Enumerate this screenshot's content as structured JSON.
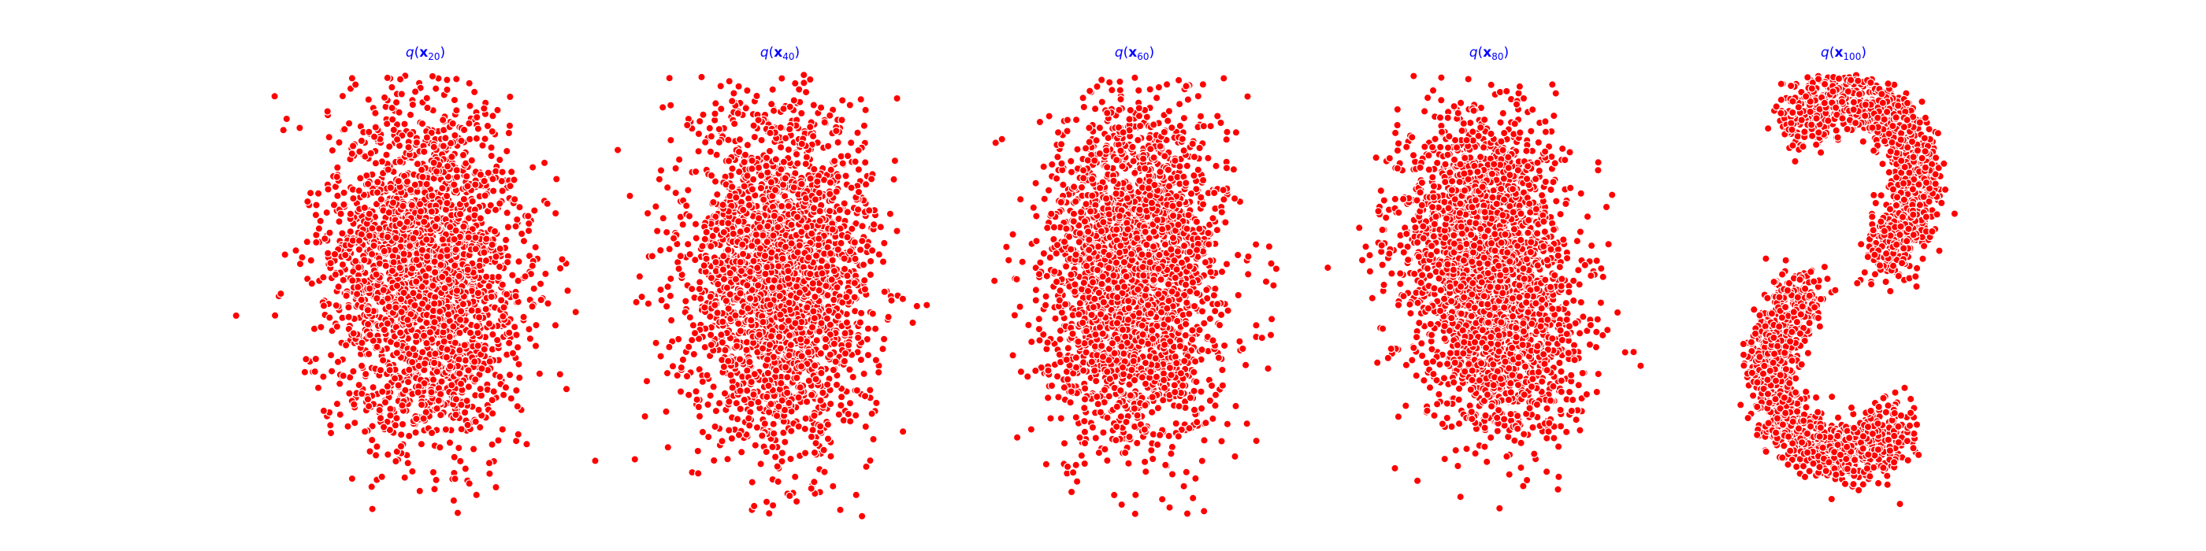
{
  "chart_data": {
    "type": "scatter",
    "axes_visible": false,
    "grid": false,
    "marker_color": "#ff0000",
    "marker_edge_color": "#ffffff",
    "title_color": "#0000ff",
    "panels": [
      {
        "title": "q(x20)",
        "title_parts": {
          "func": "q",
          "var": "x",
          "sub": "20"
        },
        "step": 20,
        "shape": "gaussian-blob",
        "points": 5000
      },
      {
        "title": "q(x40)",
        "title_parts": {
          "func": "q",
          "var": "x",
          "sub": "40"
        },
        "step": 40,
        "shape": "gaussian-blob",
        "points": 5000
      },
      {
        "title": "q(x60)",
        "title_parts": {
          "func": "q",
          "var": "x",
          "sub": "60"
        },
        "step": 60,
        "shape": "gaussian-blob",
        "points": 5000
      },
      {
        "title": "q(x80)",
        "title_parts": {
          "func": "q",
          "var": "x",
          "sub": "80"
        },
        "step": 80,
        "shape": "two-lobed-blob",
        "points": 5000
      },
      {
        "title": "q(x100)",
        "title_parts": {
          "func": "q",
          "var": "x",
          "sub": "100"
        },
        "step": 100,
        "shape": "s-curve",
        "points": 5000
      }
    ]
  }
}
